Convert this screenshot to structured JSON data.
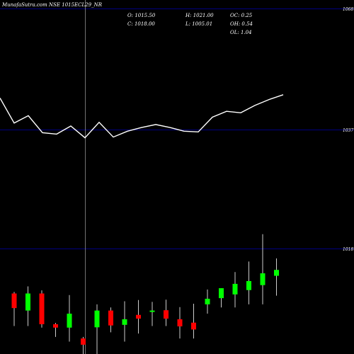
{
  "chart_data": {
    "type": "candlestick",
    "title": "MunafaSutra.com NSE 1015ECL29_NR",
    "ohlc_header": {
      "open": "O: 1015.50",
      "high": "H: 1021.00",
      "low": "L: 1005.01",
      "close": "C: 1018.00",
      "oc": "OC: 0.25",
      "oh": "OH: 0.54",
      "ol": "OL: 1.04"
    },
    "y_tick_labels": [
      "1068",
      "1037",
      "1018"
    ],
    "ylim": [
      996,
      1069
    ],
    "candles": [
      {
        "open": 1015.5,
        "close": 1010.8,
        "high": 1016.0,
        "low": 1005.0
      },
      {
        "open": 1010.0,
        "close": 1015.5,
        "high": 1017.8,
        "low": 1005.0
      },
      {
        "open": 1015.5,
        "close": 1005.6,
        "high": 1016.5,
        "low": 1004.5
      },
      {
        "open": 1005.6,
        "close": 1004.5,
        "high": 1006.0,
        "low": 1001.5
      },
      {
        "open": 1004.5,
        "close": 1009.0,
        "high": 1015.0,
        "low": 1000.0
      },
      {
        "open": 1001.0,
        "close": 999.0,
        "high": 1001.5,
        "low": 992.0
      },
      {
        "open": 1004.6,
        "close": 1010.0,
        "high": 1012.0,
        "low": 992.0
      },
      {
        "open": 1010.0,
        "close": 1005.2,
        "high": 1011.0,
        "low": 1003.0
      },
      {
        "open": 1005.4,
        "close": 1007.2,
        "high": 1013.0,
        "low": 1000.0
      },
      {
        "open": 1008.6,
        "close": 1007.4,
        "high": 1013.4,
        "low": 1002.6
      },
      {
        "open": 1010.0,
        "close": 1010.0,
        "high": 1012.8,
        "low": 1005.0
      },
      {
        "open": 1010.1,
        "close": 1007.4,
        "high": 1013.5,
        "low": 1005.0
      },
      {
        "open": 1007.2,
        "close": 1004.9,
        "high": 1011.1,
        "low": 1001.0
      },
      {
        "open": 1006.1,
        "close": 1003.9,
        "high": 1012.2,
        "low": 1001.0
      },
      {
        "open": 1012.0,
        "close": 1013.8,
        "high": 1016.8,
        "low": 1009.0
      },
      {
        "open": 1014.0,
        "close": 1017.2,
        "high": 1017.2,
        "low": 1011.0
      },
      {
        "open": 1015.2,
        "close": 1018.6,
        "high": 1022.4,
        "low": 1011.0
      },
      {
        "open": 1016.6,
        "close": 1019.5,
        "high": 1025.8,
        "low": 1012.0
      },
      {
        "open": 1018.2,
        "close": 1022.0,
        "high": 1034.6,
        "low": 1012.0
      },
      {
        "open": 1021.2,
        "close": 1023.1,
        "high": 1026.8,
        "low": 1014.8
      }
    ],
    "line_series": [
      1037.6,
      1030.8,
      1032.8,
      1028.2,
      1027.8,
      1030.0,
      1026.8,
      1031.0,
      1027.0,
      1028.6,
      1029.6,
      1030.4,
      1029.6,
      1028.6,
      1028.4,
      1032.4,
      1034.0,
      1033.6,
      1035.6,
      1037.2,
      1038.5
    ],
    "line_color": "#ffffff",
    "up_color": "#00ff00",
    "down_color": "#ff0000",
    "grid_color": "#000080"
  }
}
